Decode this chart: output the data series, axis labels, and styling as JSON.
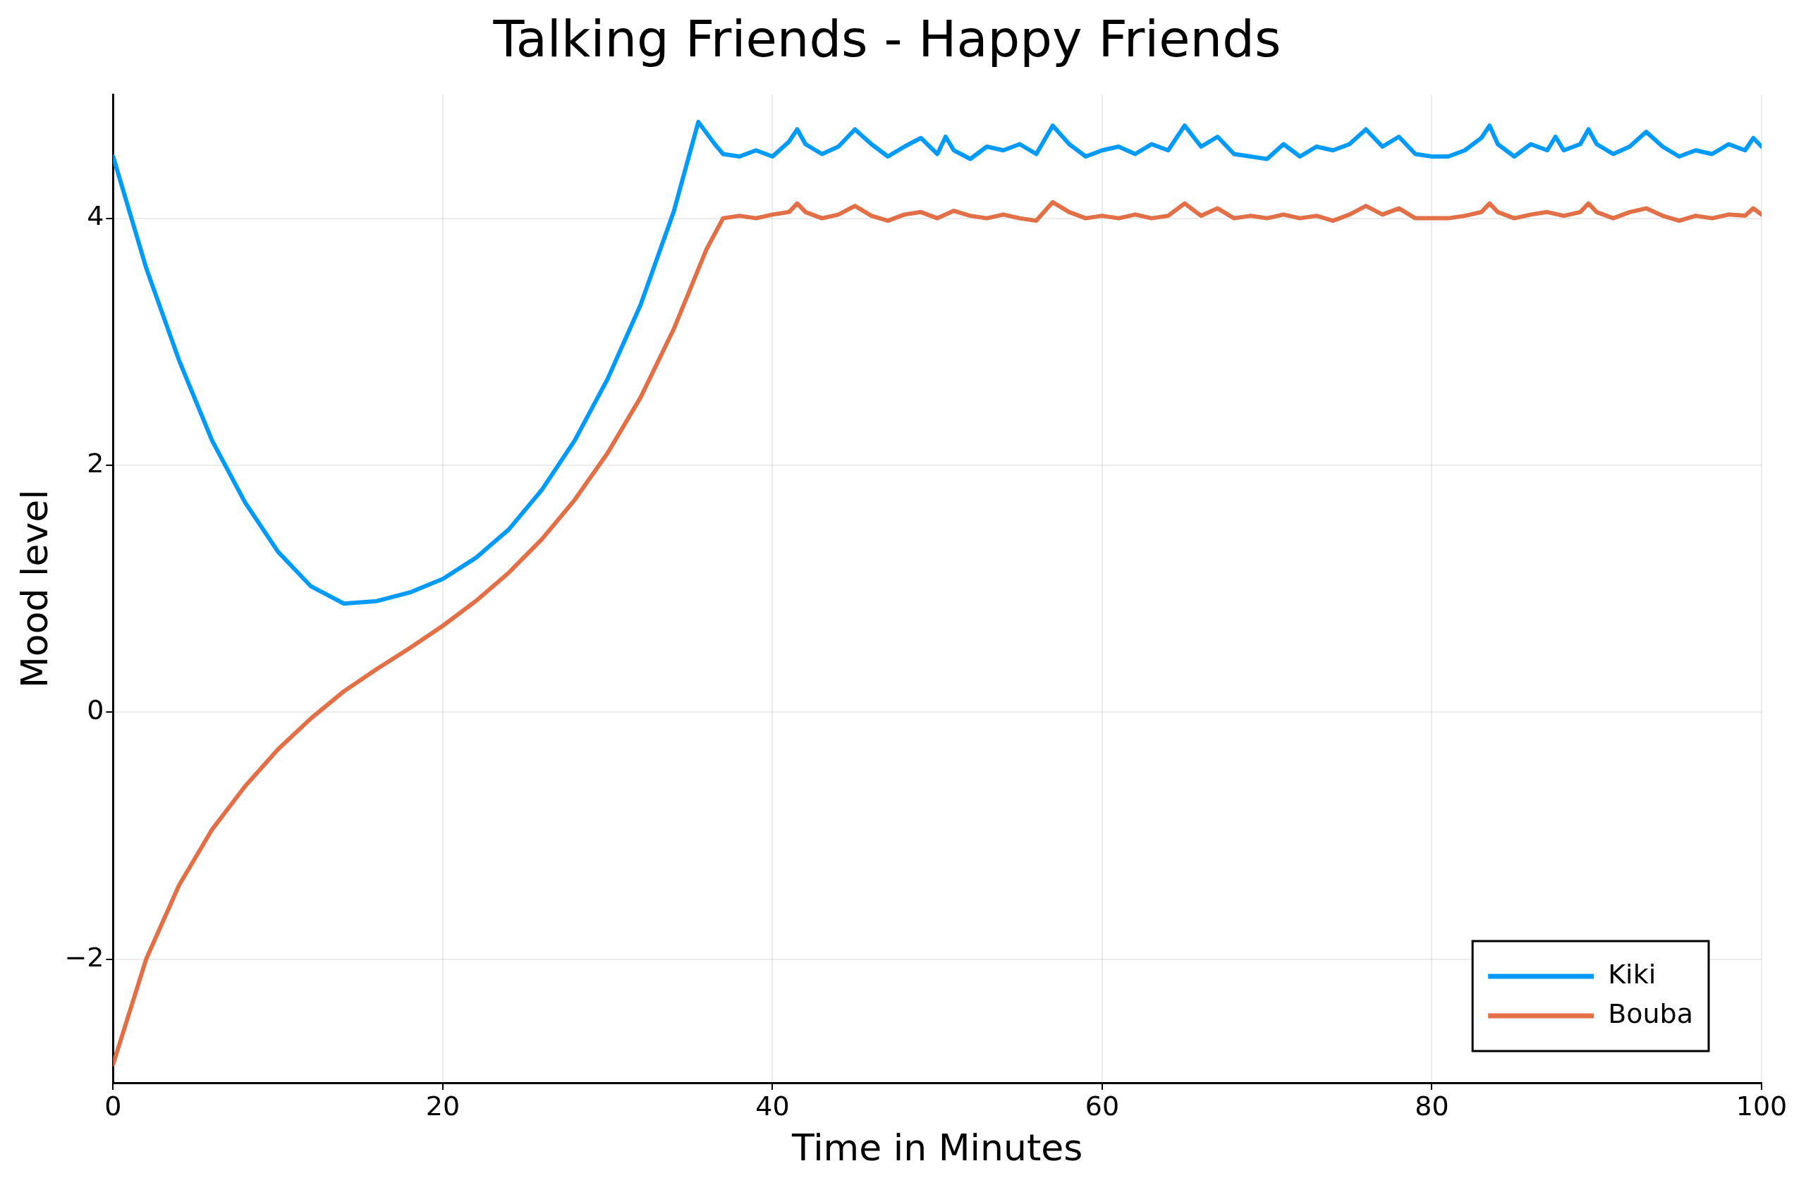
{
  "chart_data": {
    "type": "line",
    "title": "Talking Friends - Happy Friends",
    "xlabel": "Time in Minutes",
    "ylabel": "Mood level",
    "xlim": [
      0,
      100
    ],
    "xticks": [
      0,
      20,
      40,
      60,
      80,
      100
    ],
    "ylim": [
      -3,
      5
    ],
    "yticks": [
      {
        "value": -2,
        "label": "−2"
      },
      0,
      2,
      4
    ],
    "grid": true,
    "legend": "bottom right",
    "marker": "none",
    "line_style": "solid",
    "series": [
      {
        "name": "Kiki",
        "color": "#009af9",
        "x": [
          0,
          2,
          4,
          6,
          8,
          10,
          12,
          14,
          16,
          18,
          20,
          22,
          24,
          26,
          28,
          30,
          32,
          34,
          35.5,
          36.5,
          37,
          38,
          39,
          40,
          41,
          41.5,
          42,
          43,
          44,
          45,
          46,
          47,
          48,
          49,
          50,
          50.5,
          51,
          52,
          53,
          54,
          55,
          56,
          57,
          58,
          59,
          60,
          61,
          62,
          63,
          64,
          65,
          66,
          67,
          68,
          69,
          70,
          71,
          72,
          73,
          74,
          75,
          76,
          77,
          78,
          79,
          80,
          81,
          82,
          83,
          83.5,
          84,
          85,
          86,
          87,
          87.5,
          88,
          89,
          89.5,
          90,
          91,
          92,
          93,
          94,
          95,
          96,
          97,
          98,
          99,
          99.5,
          100
        ],
        "values": [
          4.5,
          3.6,
          2.85,
          2.2,
          1.7,
          1.3,
          1.02,
          0.88,
          0.9,
          0.97,
          1.08,
          1.25,
          1.48,
          1.8,
          2.2,
          2.7,
          3.3,
          4.05,
          4.78,
          4.6,
          4.52,
          4.5,
          4.55,
          4.5,
          4.62,
          4.72,
          4.6,
          4.52,
          4.58,
          4.72,
          4.6,
          4.5,
          4.58,
          4.65,
          4.52,
          4.66,
          4.55,
          4.48,
          4.58,
          4.55,
          4.6,
          4.52,
          4.75,
          4.6,
          4.5,
          4.55,
          4.58,
          4.52,
          4.6,
          4.55,
          4.75,
          4.58,
          4.66,
          4.52,
          4.5,
          4.48,
          4.6,
          4.5,
          4.58,
          4.55,
          4.6,
          4.72,
          4.58,
          4.66,
          4.52,
          4.5,
          4.5,
          4.55,
          4.65,
          4.75,
          4.6,
          4.5,
          4.6,
          4.55,
          4.66,
          4.55,
          4.6,
          4.72,
          4.6,
          4.52,
          4.58,
          4.7,
          4.58,
          4.5,
          4.55,
          4.52,
          4.6,
          4.55,
          4.65,
          4.58
        ]
      },
      {
        "name": "Bouba",
        "color": "#e26f46",
        "x": [
          0,
          2,
          4,
          6,
          8,
          10,
          12,
          14,
          16,
          18,
          20,
          22,
          24,
          26,
          28,
          30,
          32,
          34,
          36,
          37,
          38,
          39,
          40,
          41,
          41.5,
          42,
          43,
          44,
          45,
          46,
          47,
          48,
          49,
          50,
          51,
          52,
          53,
          54,
          55,
          56,
          57,
          58,
          59,
          60,
          61,
          62,
          63,
          64,
          65,
          66,
          67,
          68,
          69,
          70,
          71,
          72,
          73,
          74,
          75,
          76,
          77,
          78,
          79,
          80,
          81,
          82,
          83,
          83.5,
          84,
          85,
          86,
          87,
          88,
          89,
          89.5,
          90,
          91,
          92,
          93,
          94,
          95,
          96,
          97,
          98,
          99,
          99.5,
          100
        ],
        "values": [
          -2.85,
          -2.0,
          -1.4,
          -0.95,
          -0.6,
          -0.3,
          -0.05,
          0.17,
          0.35,
          0.52,
          0.7,
          0.9,
          1.13,
          1.4,
          1.72,
          2.1,
          2.55,
          3.1,
          3.75,
          4.0,
          4.02,
          4.0,
          4.03,
          4.05,
          4.12,
          4.05,
          4.0,
          4.03,
          4.1,
          4.02,
          3.98,
          4.03,
          4.05,
          4.0,
          4.06,
          4.02,
          4.0,
          4.03,
          4.0,
          3.98,
          4.13,
          4.05,
          4.0,
          4.02,
          4.0,
          4.03,
          4.0,
          4.02,
          4.12,
          4.02,
          4.08,
          4.0,
          4.02,
          4.0,
          4.03,
          4.0,
          4.02,
          3.98,
          4.03,
          4.1,
          4.03,
          4.08,
          4.0,
          4.0,
          4.0,
          4.02,
          4.05,
          4.12,
          4.05,
          4.0,
          4.03,
          4.05,
          4.02,
          4.05,
          4.12,
          4.05,
          4.0,
          4.05,
          4.08,
          4.02,
          3.98,
          4.02,
          4.0,
          4.03,
          4.02,
          4.08,
          4.03
        ]
      }
    ]
  }
}
